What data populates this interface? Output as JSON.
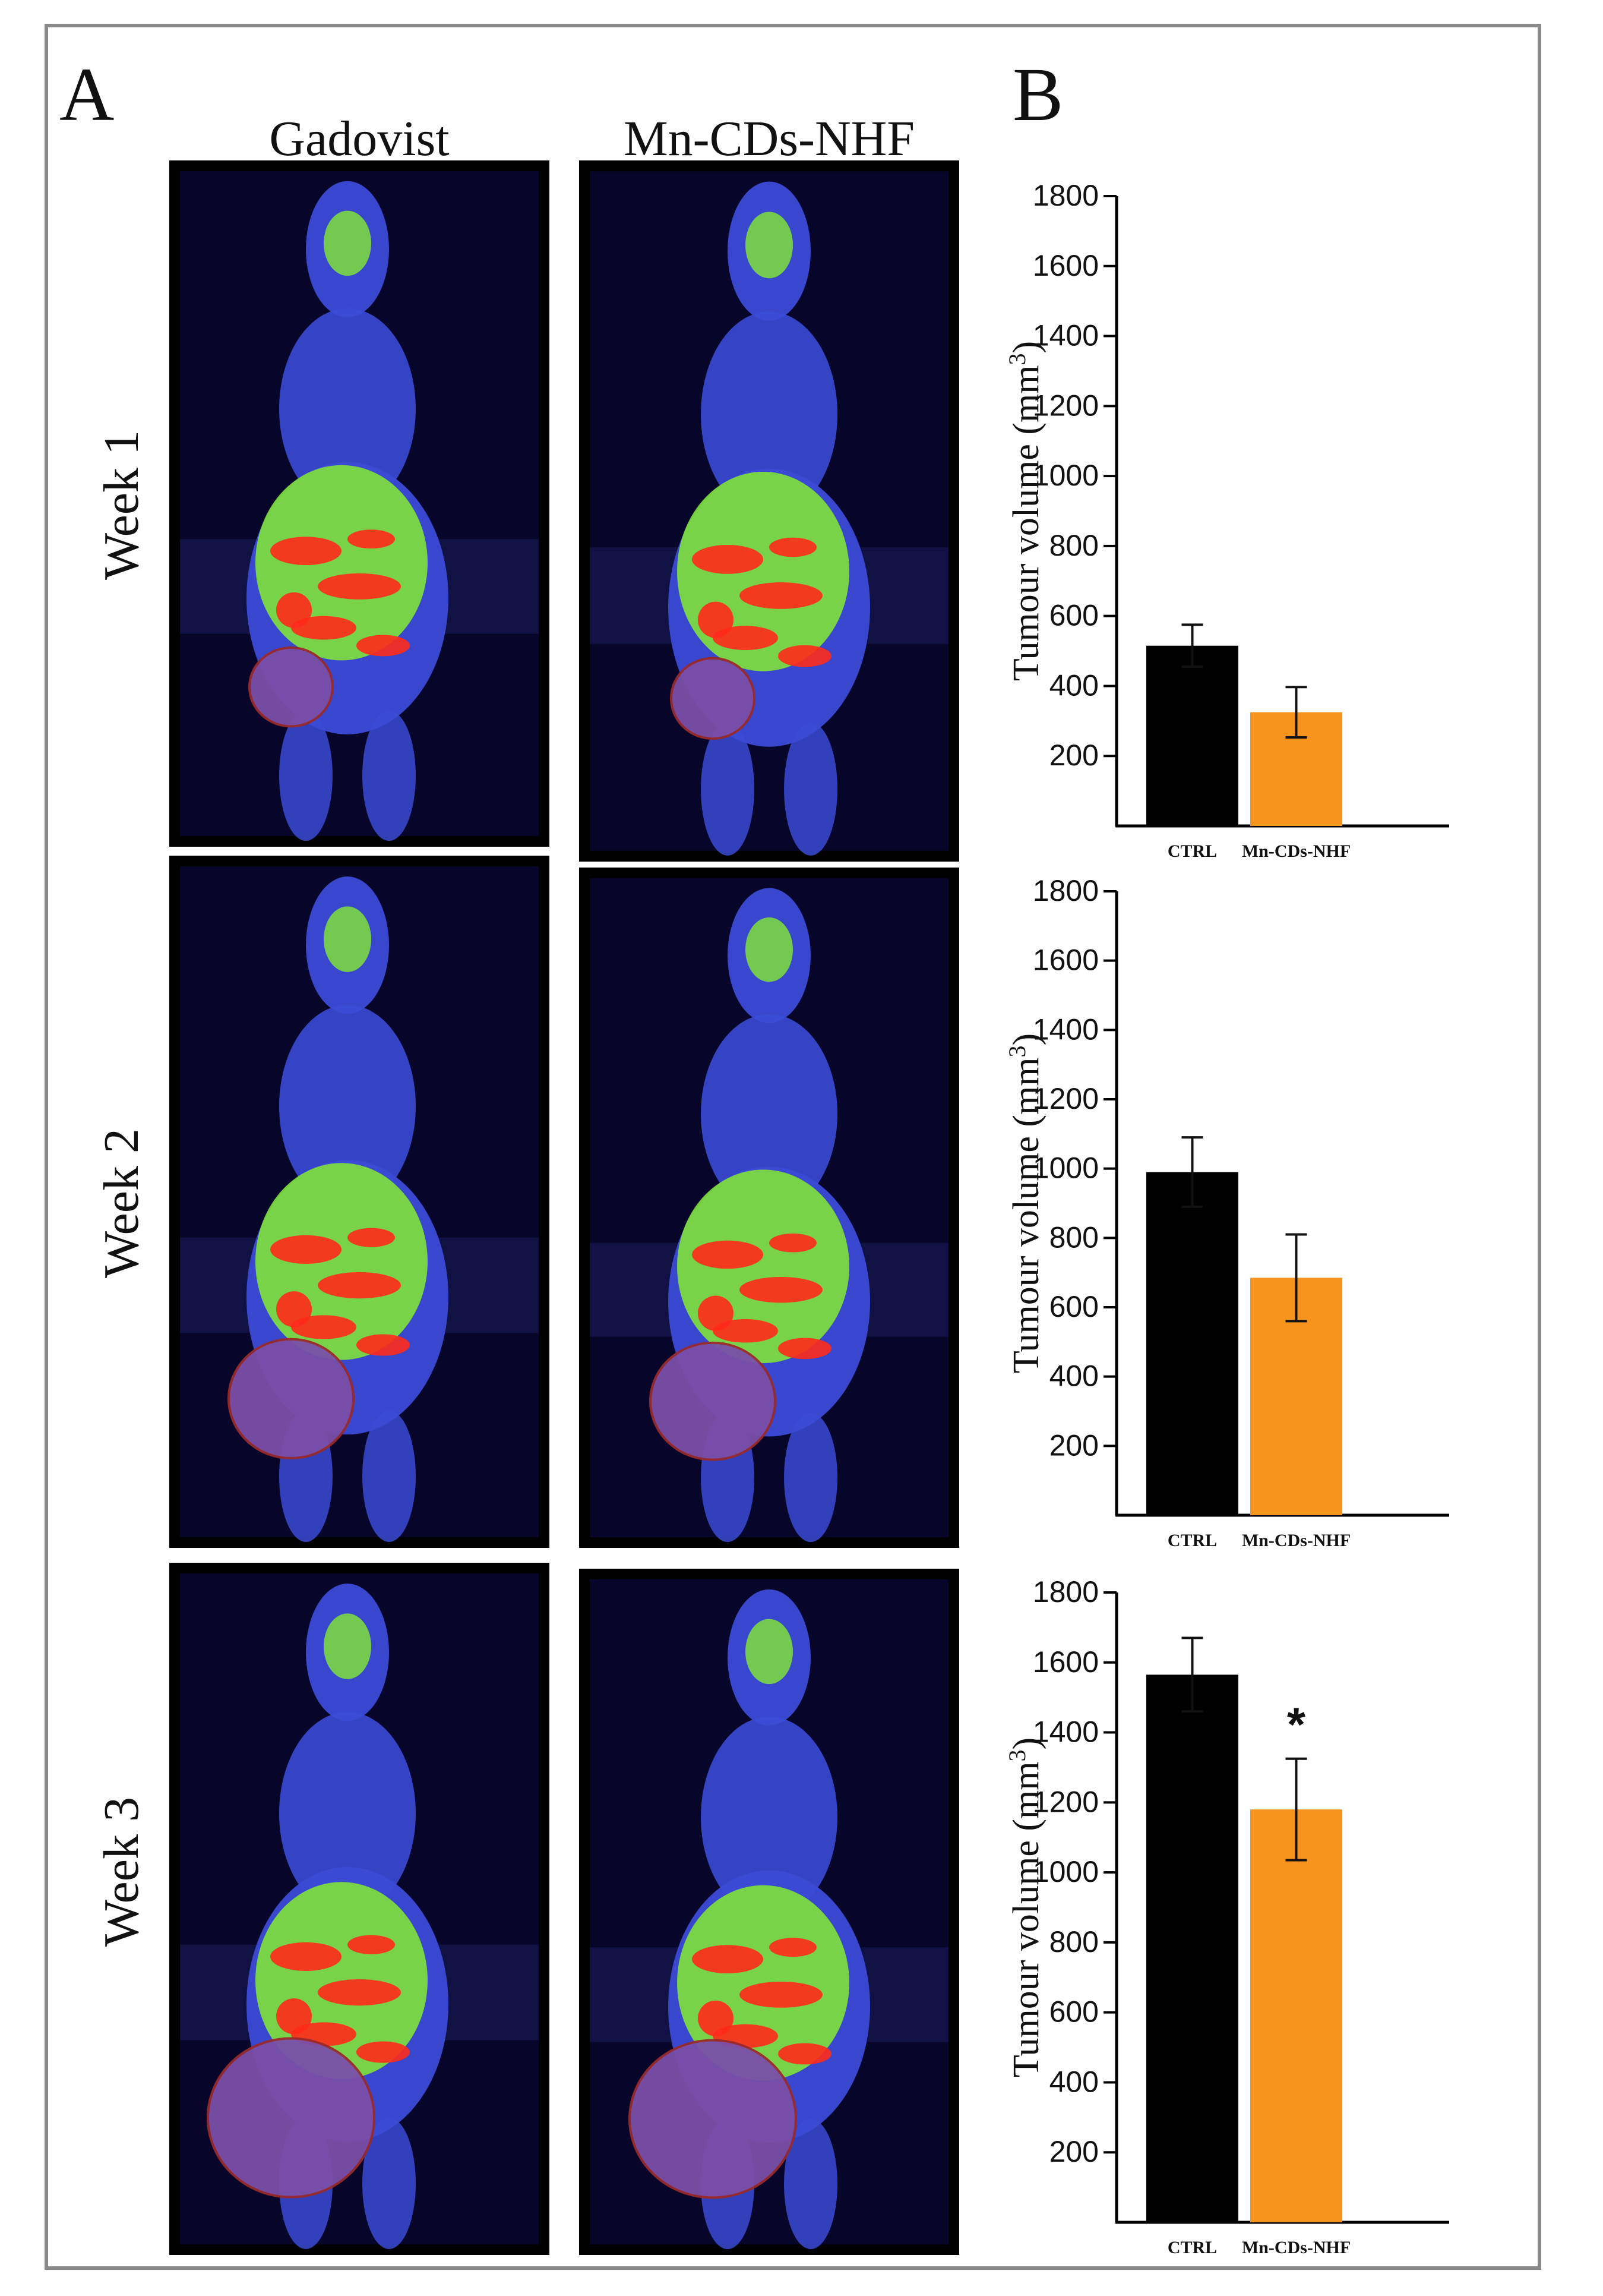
{
  "panels": {
    "a_label": "A",
    "b_label": "B"
  },
  "columns": [
    {
      "title": "Gadovist"
    },
    {
      "title": "Mn-CDs-NHF"
    }
  ],
  "rows": [
    {
      "label": "Week 1"
    },
    {
      "label": "Week 2"
    },
    {
      "label": "Week 3"
    }
  ],
  "colors": {
    "ctrl": "#000000",
    "treated": "#f7941d",
    "mri_background": "#07062a",
    "body_blue": "#3b4bd6",
    "signal_green": "#7fe23a",
    "signal_red": "#ff2a1a",
    "tumour_purple": "#7a4fa8"
  },
  "chart_data": [
    {
      "type": "bar",
      "week": "Week 1",
      "categories": [
        "CTRL",
        "Mn-CDs-NHF"
      ],
      "values": [
        515,
        325
      ],
      "errors": [
        60,
        72
      ],
      "ylabel": "Tumour volume (mm",
      "ylabel_sup": "3",
      "ylabel_close": ")",
      "yticks": [
        "200",
        "400",
        "600",
        "800",
        "1000",
        "1200",
        "1400",
        "1600",
        "1800"
      ],
      "ylim": [
        0,
        1800
      ],
      "annotation": ""
    },
    {
      "type": "bar",
      "week": "Week 2",
      "categories": [
        "CTRL",
        "Mn-CDs-NHF"
      ],
      "values": [
        990,
        685
      ],
      "errors": [
        100,
        125
      ],
      "ylabel": "Tumour volume (mm",
      "ylabel_sup": "3",
      "ylabel_close": ")",
      "yticks": [
        "200",
        "400",
        "600",
        "800",
        "1000",
        "1200",
        "1400",
        "1600",
        "1800"
      ],
      "ylim": [
        0,
        1800
      ],
      "annotation": ""
    },
    {
      "type": "bar",
      "week": "Week 3",
      "categories": [
        "CTRL",
        "Mn-CDs-NHF"
      ],
      "values": [
        1565,
        1180
      ],
      "errors": [
        105,
        145
      ],
      "ylabel": "Tumour volume (mm",
      "ylabel_sup": "3",
      "ylabel_close": ")",
      "yticks": [
        "200",
        "400",
        "600",
        "800",
        "1000",
        "1200",
        "1400",
        "1600",
        "1800"
      ],
      "ylim": [
        0,
        1800
      ],
      "annotation": "*"
    }
  ]
}
